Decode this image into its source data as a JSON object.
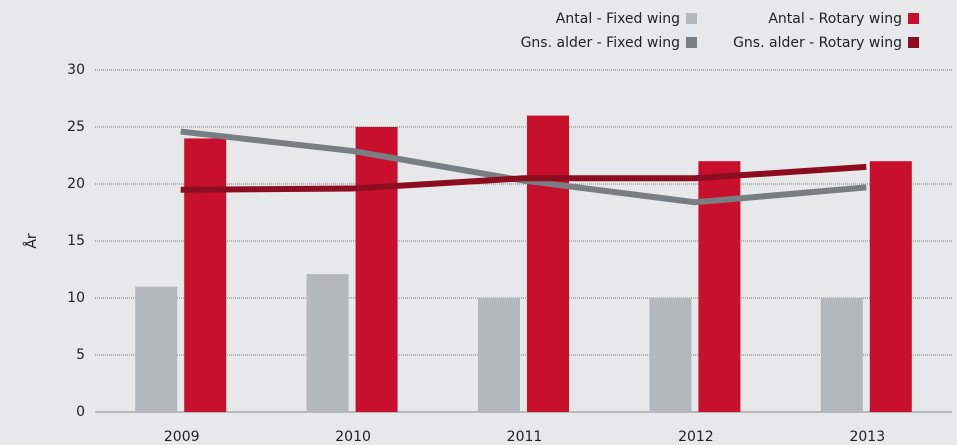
{
  "chart_data": {
    "type": "bar",
    "y_label": "År",
    "categories": [
      "2009",
      "2010",
      "2011",
      "2012",
      "2013"
    ],
    "series": [
      {
        "name": "Antal - Fixed wing",
        "type": "bar",
        "color": "#b3b8bc",
        "values": [
          11,
          12.1,
          10,
          10,
          10
        ]
      },
      {
        "name": "Antal - Rotary wing",
        "type": "bar",
        "color": "#c8102e",
        "values": [
          24,
          25,
          26,
          22,
          22
        ]
      },
      {
        "name": "Gns. alder - Fixed wing",
        "type": "line",
        "color": "#787e82",
        "values": [
          24.6,
          22.9,
          20.3,
          18.4,
          19.7
        ]
      },
      {
        "name": "Gns. alder - Rotary wing",
        "type": "line",
        "color": "#8b0d1f",
        "values": [
          19.5,
          19.6,
          20.5,
          20.5,
          21.5
        ]
      }
    ],
    "ylim": [
      0,
      30
    ],
    "yticks": [
      0,
      5,
      10,
      15,
      20,
      25,
      30
    ],
    "grid": true,
    "legend": "top-right"
  }
}
